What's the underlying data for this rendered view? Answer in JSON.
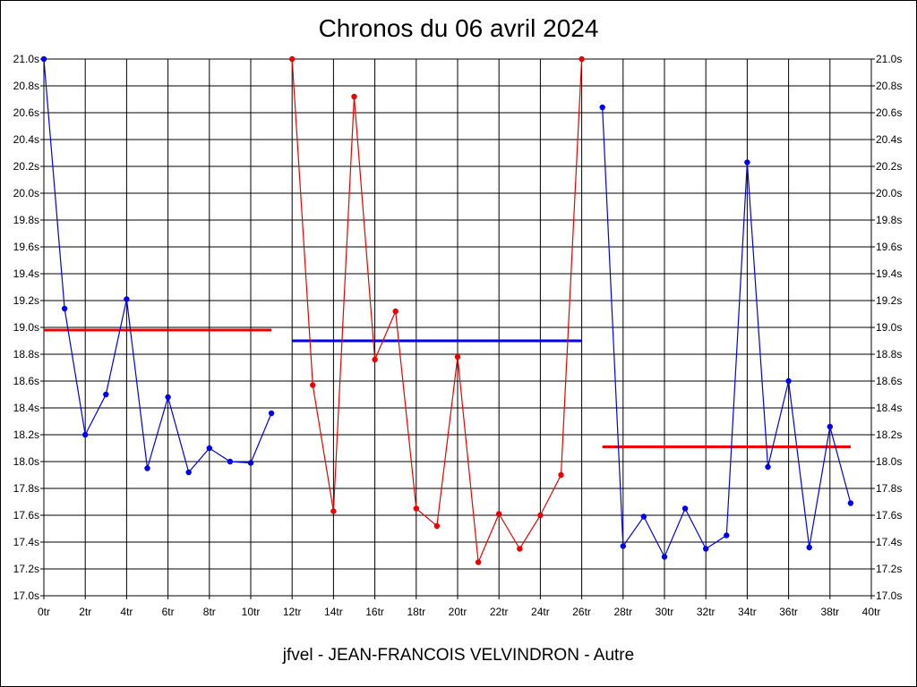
{
  "title": "Chronos du 06 avril 2024",
  "footer": "jfvel - JEAN-FRANCOIS VELVINDRON - Autre",
  "colors": {
    "blue": "#0000ee",
    "red": "#ee0000",
    "grid": "#000000"
  },
  "chart_data": {
    "type": "line",
    "title": "Chronos du 06 avril 2024",
    "xlabel": "",
    "ylabel": "",
    "xlim": [
      0,
      40
    ],
    "ylim": [
      17.0,
      21.0
    ],
    "grid": true,
    "x_tick_labels": [
      "0tr",
      "2tr",
      "4tr",
      "6tr",
      "8tr",
      "10tr",
      "12tr",
      "14tr",
      "16tr",
      "18tr",
      "20tr",
      "22tr",
      "24tr",
      "26tr",
      "28tr",
      "30tr",
      "32tr",
      "34tr",
      "36tr",
      "38tr",
      "40tr"
    ],
    "y_tick_labels": [
      "17.0s",
      "17.2s",
      "17.4s",
      "17.6s",
      "17.8s",
      "18.0s",
      "18.2s",
      "18.4s",
      "18.6s",
      "18.8s",
      "19.0s",
      "19.2s",
      "19.4s",
      "19.6s",
      "19.8s",
      "20.0s",
      "20.2s",
      "20.4s",
      "20.6s",
      "20.8s",
      "21.0s"
    ],
    "series": [
      {
        "color": "blue",
        "points": [
          [
            0,
            21.0
          ],
          [
            1,
            19.14
          ],
          [
            2,
            18.2
          ],
          [
            3,
            18.5
          ],
          [
            4,
            19.21
          ],
          [
            5,
            17.95
          ],
          [
            6,
            18.48
          ],
          [
            7,
            17.92
          ],
          [
            8,
            18.1
          ],
          [
            9,
            18.0
          ],
          [
            10,
            17.99
          ],
          [
            11,
            18.36
          ]
        ]
      },
      {
        "color": "red",
        "points": [
          [
            12,
            21.0
          ],
          [
            13,
            18.57
          ],
          [
            14,
            17.63
          ],
          [
            15,
            20.72
          ],
          [
            16,
            18.76
          ],
          [
            17,
            19.12
          ],
          [
            18,
            17.65
          ],
          [
            19,
            17.52
          ],
          [
            20,
            18.78
          ],
          [
            21,
            17.25
          ],
          [
            22,
            17.61
          ],
          [
            23,
            17.35
          ],
          [
            24,
            17.6
          ],
          [
            25,
            17.9
          ],
          [
            26,
            21.0
          ]
        ]
      },
      {
        "color": "blue",
        "points": [
          [
            27,
            20.64
          ],
          [
            28,
            17.37
          ],
          [
            29,
            17.59
          ],
          [
            30,
            17.29
          ],
          [
            31,
            17.65
          ],
          [
            32,
            17.35
          ],
          [
            33,
            17.45
          ],
          [
            34,
            20.23
          ],
          [
            35,
            17.96
          ],
          [
            36,
            18.6
          ],
          [
            37,
            17.36
          ],
          [
            38,
            18.26
          ],
          [
            39,
            17.69
          ]
        ]
      }
    ],
    "average_lines": [
      {
        "color": "red",
        "x": [
          0,
          11
        ],
        "y": 18.98
      },
      {
        "color": "blue",
        "x": [
          12,
          26
        ],
        "y": 18.9
      },
      {
        "color": "red",
        "x": [
          27,
          39
        ],
        "y": 18.11
      }
    ]
  }
}
